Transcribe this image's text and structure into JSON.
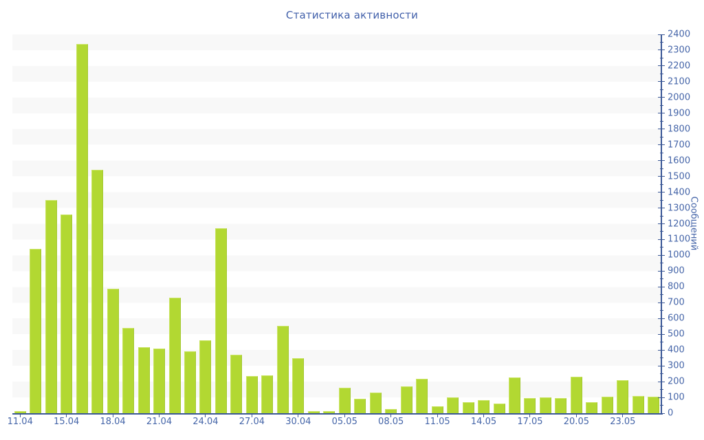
{
  "chart_data": {
    "type": "bar",
    "title": "Статистика активности",
    "ylabel": "Сообщений",
    "xlabel": "",
    "ylim": [
      0,
      2400
    ],
    "y_major_tick_step": 100,
    "y_minor_tick_step": 50,
    "legend": "none",
    "gridlines": "alternating horizontal background bands every 100 units",
    "x_tick_labels": [
      "11.04",
      "15.04",
      "18.04",
      "21.04",
      "24.04",
      "27.04",
      "30.04",
      "05.05",
      "08.05",
      "11.05",
      "14.05",
      "17.05",
      "20.05",
      "23.05"
    ],
    "x_tick_every_n_bars": 3,
    "bar_values": [
      15,
      1040,
      1350,
      1260,
      2340,
      1540,
      790,
      540,
      420,
      410,
      730,
      390,
      460,
      1170,
      370,
      235,
      240,
      555,
      350,
      15,
      12,
      160,
      90,
      130,
      25,
      170,
      220,
      45,
      100,
      70,
      85,
      60,
      225,
      95,
      100,
      95,
      230,
      70,
      105,
      210,
      110,
      105
    ],
    "colors": {
      "bar_fill": "#b2d832",
      "bar_edge_light": "#cbe566",
      "bar_edge_dark": "#a2c72f",
      "axis_line": "#3a5795",
      "tick_label": "#4565a8",
      "title": "#3f5ea9",
      "stripe": "#f8f8f8",
      "background": "#ffffff"
    }
  }
}
